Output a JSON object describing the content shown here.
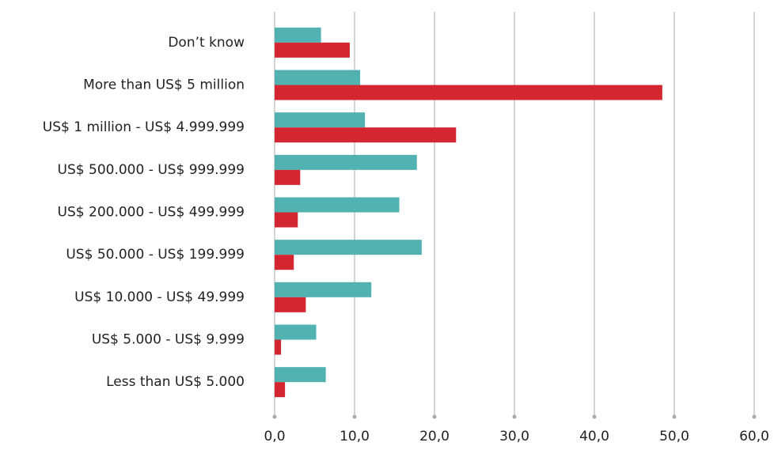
{
  "chart_data": {
    "type": "bar",
    "orientation": "horizontal",
    "categories": [
      "Don’t know",
      "More than US$ 5 million",
      "US$ 1 million - US$ 4.999.999",
      "US$ 500.000 - US$ 999.999",
      "US$ 200.000 - US$ 499.999",
      "US$ 50.000 - US$ 199.999",
      "US$ 10.000 - US$ 49.999",
      "US$ 5.000 - US$ 9.999",
      "Less than US$ 5.000"
    ],
    "series": [
      {
        "color": "#52b1b1",
        "values": [
          5.8,
          10.7,
          11.3,
          17.8,
          15.6,
          18.4,
          12.1,
          5.2,
          6.4
        ]
      },
      {
        "color": "#d42630",
        "values": [
          9.4,
          48.5,
          22.7,
          3.2,
          2.9,
          2.4,
          3.9,
          0.8,
          1.3
        ]
      }
    ],
    "xlim": [
      0,
      60
    ],
    "xticks": [
      {
        "value": 0,
        "label": "0,0"
      },
      {
        "value": 10,
        "label": "10,0"
      },
      {
        "value": 20,
        "label": "20,0"
      },
      {
        "value": 30,
        "label": "30,0"
      },
      {
        "value": 40,
        "label": "40,0"
      },
      {
        "value": 50,
        "label": "50,0"
      },
      {
        "value": 60,
        "label": "60,0"
      }
    ],
    "grid": true
  }
}
